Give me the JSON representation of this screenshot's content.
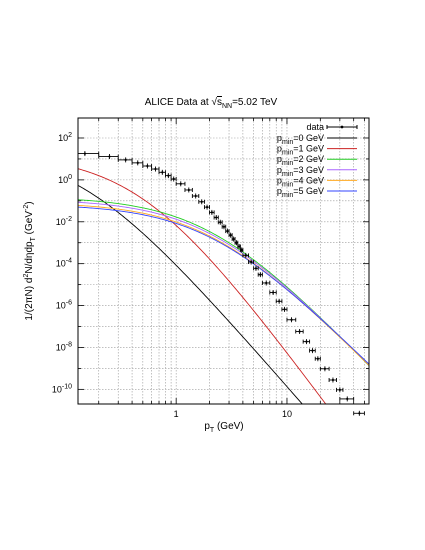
{
  "chart_data": {
    "type": "line",
    "title_prefix": "ALICE Data at ",
    "title_sqrt": "√",
    "title_s": "s",
    "title_sub": "NN",
    "title_suffix": "=5.02 TeV",
    "xlabel_main": "p",
    "xlabel_sub": "T",
    "xlabel_unit": " (GeV)",
    "ylabel": "1/(2πN) d²N/dηdp_T (GeV⁻²)",
    "ylabel_parts": {
      "pre": "1/(2πN) d",
      "sup1": "2",
      "mid": "N/dηdp",
      "sub": "T",
      "post": " (GeV",
      "sup2": "-2",
      "end": ")"
    },
    "xscale": "log",
    "yscale": "log",
    "xlim": [
      0.13,
      55
    ],
    "ylim": [
      2e-11,
      900
    ],
    "x_ticklabels": [
      {
        "v": 1,
        "t": "1"
      },
      {
        "v": 10,
        "t": "10"
      }
    ],
    "y_ticklabels": [
      {
        "v": 100,
        "m": "10",
        "e": "2"
      },
      {
        "v": 1,
        "m": "10",
        "e": "0"
      },
      {
        "v": 0.01,
        "m": "10",
        "e": "-2"
      },
      {
        "v": 0.0001,
        "m": "10",
        "e": "-4"
      },
      {
        "v": 1e-06,
        "m": "10",
        "e": "-6"
      },
      {
        "v": 1e-08,
        "m": "10",
        "e": "-8"
      },
      {
        "v": 1e-10,
        "m": "10",
        "e": "-10"
      }
    ],
    "grid": true,
    "legend_position": "top-right",
    "data_series": {
      "name": "data",
      "color": "#000000",
      "x": [
        0.15,
        0.25,
        0.35,
        0.45,
        0.55,
        0.65,
        0.75,
        0.85,
        0.95,
        1.1,
        1.3,
        1.5,
        1.7,
        1.9,
        2.1,
        2.3,
        2.5,
        2.7,
        2.9,
        3.1,
        3.3,
        3.5,
        3.7,
        3.9,
        4.25,
        4.75,
        5.25,
        5.75,
        6.5,
        7.5,
        8.5,
        9.5,
        11,
        13,
        15,
        17,
        19,
        22,
        26,
        30,
        35,
        45
      ],
      "y": [
        18,
        13,
        9,
        6.5,
        4.6,
        3.3,
        2.3,
        1.6,
        1.1,
        0.65,
        0.33,
        0.17,
        0.09,
        0.05,
        0.028,
        0.016,
        0.0095,
        0.0058,
        0.0036,
        0.0023,
        0.0015,
        0.001,
        0.00066,
        0.00045,
        0.00025,
        0.00012,
        6e-05,
        3e-05,
        1.2e-05,
        4.2e-06,
        1.6e-06,
        6.6e-07,
        2.1e-07,
        5.8e-08,
        1.9e-08,
        7.1e-09,
        2.9e-09,
        9.6e-10,
        2.8e-10,
        9.5e-11,
        3.5e-11,
        7.2e-12
      ],
      "xerr": [
        0.05,
        0.05,
        0.05,
        0.05,
        0.05,
        0.05,
        0.05,
        0.05,
        0.05,
        0.1,
        0.1,
        0.1,
        0.1,
        0.1,
        0.1,
        0.1,
        0.1,
        0.1,
        0.1,
        0.1,
        0.1,
        0.1,
        0.1,
        0.1,
        0.25,
        0.25,
        0.25,
        0.25,
        0.5,
        0.5,
        0.5,
        0.5,
        1,
        1,
        1,
        1,
        1,
        2,
        2,
        2,
        5,
        5
      ]
    },
    "series": [
      {
        "name": "p_min=0 GeV",
        "label_main": "p",
        "label_sub": "min",
        "label_rest": "=0 GeV",
        "color": "#000000",
        "A": 30,
        "pc": 0.14,
        "n": 6.1
      },
      {
        "name": "p_min=1 GeV",
        "label_main": "p",
        "label_sub": "min",
        "label_rest": "=1 GeV",
        "color": "#cc2222",
        "A": 18,
        "pc": 0.5,
        "n": 7.2
      },
      {
        "name": "p_min=2 GeV",
        "label_main": "p",
        "label_sub": "min",
        "label_rest": "=2 GeV",
        "color": "#22cc22",
        "A": 0.16,
        "pc": 2.0,
        "n": 5.55
      },
      {
        "name": "p_min=3 GeV",
        "label_main": "p",
        "label_sub": "min",
        "label_rest": "=3 GeV",
        "color": "#aa66ff",
        "A": 0.12,
        "pc": 2.0,
        "n": 5.45
      },
      {
        "name": "p_min=4 GeV",
        "label_main": "p",
        "label_sub": "min",
        "label_rest": "=4 GeV",
        "color": "#ffaa22",
        "A": 0.085,
        "pc": 2.0,
        "n": 5.35
      },
      {
        "name": "p_min=5 GeV",
        "label_main": "p",
        "label_sub": "min",
        "label_rest": "=5 GeV",
        "color": "#3344ff",
        "A": 0.07,
        "pc": 2.0,
        "n": 5.25
      }
    ]
  }
}
